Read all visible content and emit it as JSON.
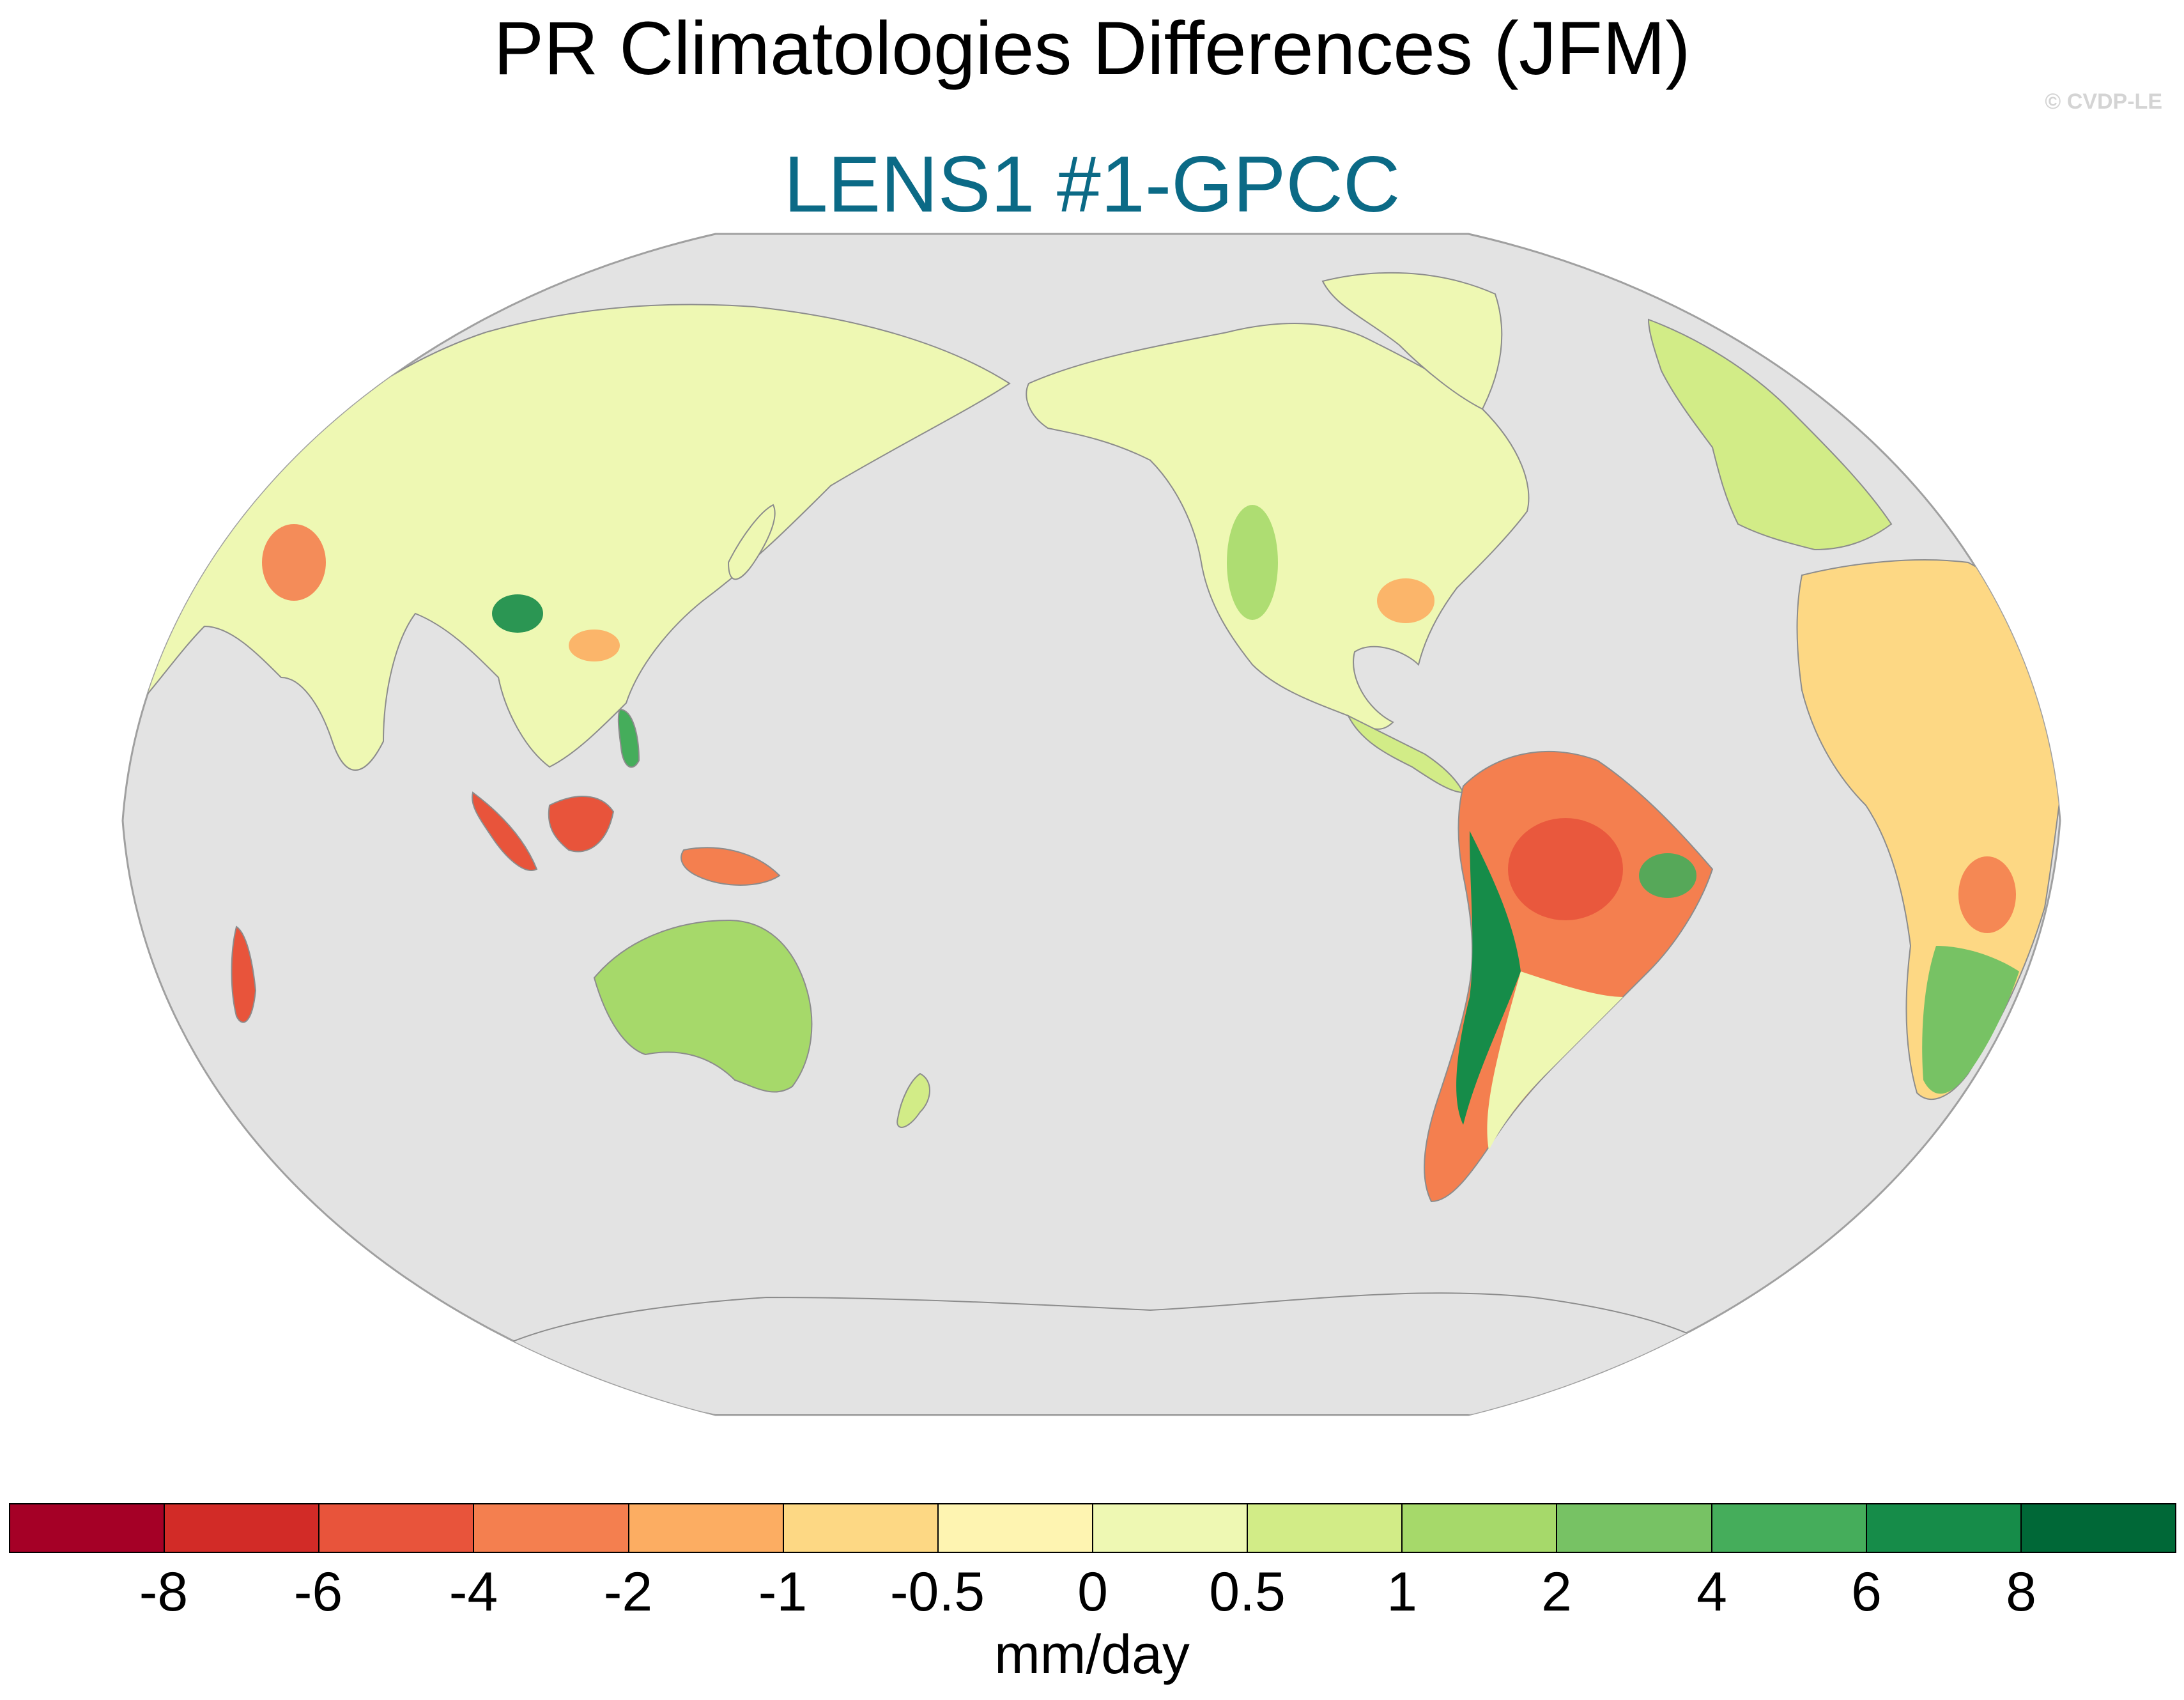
{
  "title": "PR Climatologies Differences (JFM)",
  "subtitle": "LENS1 #1-GPCC",
  "credit": "© CVDP-LE",
  "colors": {
    "subtitle": "#0b6a86",
    "credit": "#d4d4d4",
    "ocean": "#e3e3e3",
    "coast": "#8c8c8c",
    "frame": "#a0a0a0"
  },
  "projection": "Robinson, central meridian 180°",
  "colorbar": {
    "units": "mm/day",
    "tick_labels": [
      "-8",
      "-6",
      "-4",
      "-2",
      "-1",
      "-0.5",
      "0",
      "0.5",
      "1",
      "2",
      "4",
      "6",
      "8"
    ],
    "levels": [
      -8,
      -6,
      -4,
      -2,
      -1,
      -0.5,
      0,
      0.5,
      1,
      2,
      4,
      6,
      8
    ],
    "colors": [
      "#a50026",
      "#d22b27",
      "#e8543b",
      "#f47f4f",
      "#fcad62",
      "#fdd884",
      "#fef4b1",
      "#eef8b3",
      "#d2ec87",
      "#a6d96a",
      "#77c264",
      "#45ad5b",
      "#168c49",
      "#006837"
    ]
  }
}
